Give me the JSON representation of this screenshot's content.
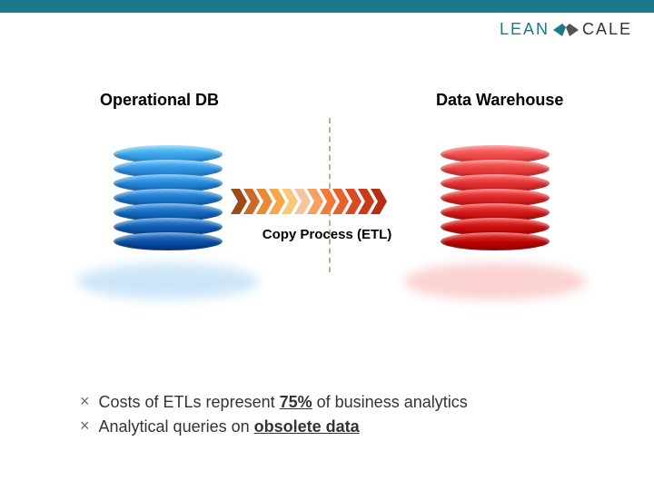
{
  "brand": {
    "name_left": "LEAN",
    "name_right": "CALE",
    "color_left": "#1a7a8c",
    "color_right": "#333333",
    "topbar_color": "#1a7a8c"
  },
  "diagram": {
    "left_db": {
      "title": "Operational DB",
      "disc_colors": [
        "#3aa0e8",
        "#2d8fdc",
        "#2381d0",
        "#1a73c4",
        "#1466b8",
        "#0e59ac",
        "#094da0"
      ],
      "reflection_color": "#3aa0e8"
    },
    "right_db": {
      "title": "Data Warehouse",
      "disc_colors": [
        "#f04a4a",
        "#e73c3c",
        "#de2f2f",
        "#d52323",
        "#cc1818",
        "#c30e0e",
        "#ba0505"
      ],
      "reflection_color": "#f04a4a"
    },
    "arrow_colors": [
      "#9e4a1a",
      "#c96a2a",
      "#e88a3a",
      "#f5a84a",
      "#f9c97a",
      "#f5c4a0",
      "#f5a060",
      "#ef7a3a",
      "#e8602a",
      "#d84a20",
      "#c83a18",
      "#b82e12"
    ],
    "copy_label": "Copy Process (ETL)",
    "divider_color": "#b5b191"
  },
  "bullets": [
    {
      "marker": "×",
      "pre": "Costs of ETLs represent ",
      "emph": "75%",
      "post": " of business analytics"
    },
    {
      "marker": "×",
      "pre": "Analytical queries on ",
      "emph": "obsolete data",
      "post": ""
    }
  ],
  "text_color": "#333333"
}
